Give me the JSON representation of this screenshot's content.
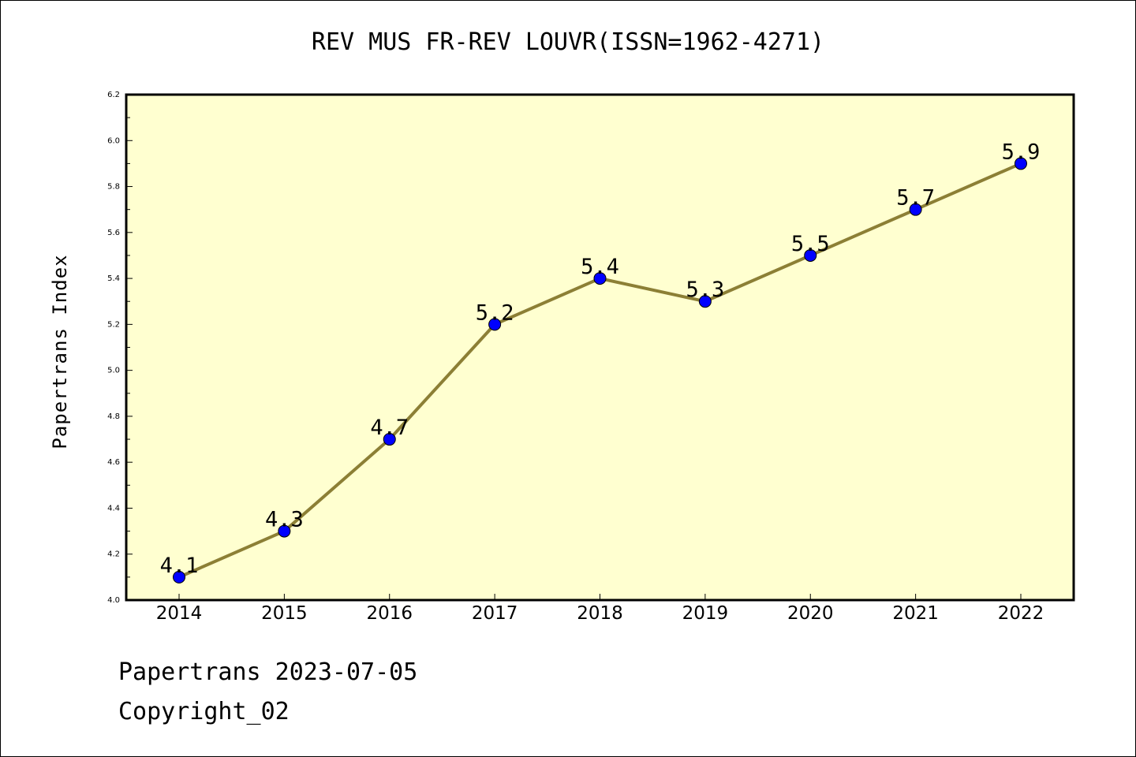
{
  "chart_data": {
    "type": "line",
    "title": "REV MUS FR-REV LOUVR(ISSN=1962-4271)",
    "xlabel": "",
    "ylabel": "Papertrans Index",
    "categories": [
      "2014",
      "2015",
      "2016",
      "2017",
      "2018",
      "2019",
      "2020",
      "2021",
      "2022"
    ],
    "values": [
      4.1,
      4.3,
      4.7,
      5.2,
      5.4,
      5.3,
      5.5,
      5.7,
      5.9
    ],
    "data_labels": [
      "4.1",
      "4.3",
      "4.7",
      "5.2",
      "5.4",
      "5.3",
      "5.5",
      "5.7",
      "5.9"
    ],
    "ylim": [
      4.0,
      6.2
    ],
    "yticks": [
      "4.0",
      "4.2",
      "4.4",
      "4.6",
      "4.8",
      "5.0",
      "5.2",
      "5.4",
      "5.6",
      "5.8",
      "6.0",
      "6.2"
    ],
    "grid": false,
    "colors": {
      "plot_background": "#ffffd0",
      "line": "#8c7f35",
      "marker": "#0000ff"
    }
  },
  "footer": {
    "date_text": "Papertrans 2023-07-05",
    "copyright_text": "Copyright_02"
  }
}
